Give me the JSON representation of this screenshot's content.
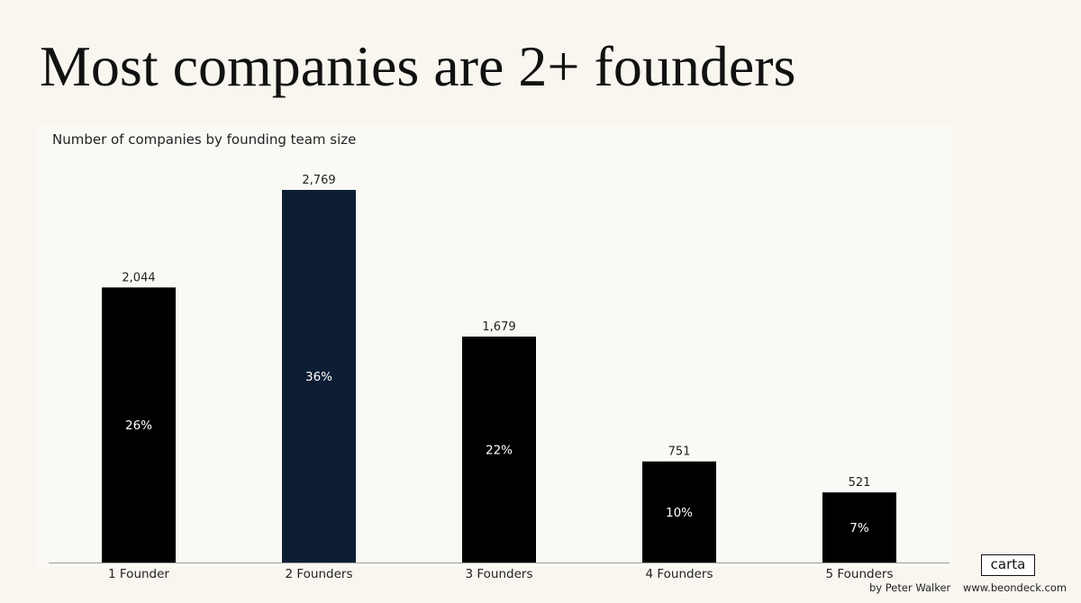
{
  "headline": "Most companies are 2+ founders",
  "credit": "by Peter Walker",
  "website": "www.beondeck.com",
  "logo_text": "carta",
  "colors": {
    "bar_default": "#000000",
    "bar_highlight": "#0d1d33",
    "background": "#f9f6f0"
  },
  "chart_data": {
    "type": "bar",
    "title": "Number of companies by founding team size",
    "xlabel": "",
    "ylabel": "",
    "categories": [
      "1 Founder",
      "2 Founders",
      "3 Founders",
      "4 Founders",
      "5 Founders"
    ],
    "values": [
      2044,
      2769,
      1679,
      751,
      521
    ],
    "value_labels": [
      "2,044",
      "2,769",
      "1,679",
      "751",
      "521"
    ],
    "percent_labels": [
      "26%",
      "36%",
      "22%",
      "10%",
      "7%"
    ],
    "highlight_index": 1,
    "ylim": [
      0,
      3000
    ],
    "grid": false,
    "legend": "none"
  }
}
